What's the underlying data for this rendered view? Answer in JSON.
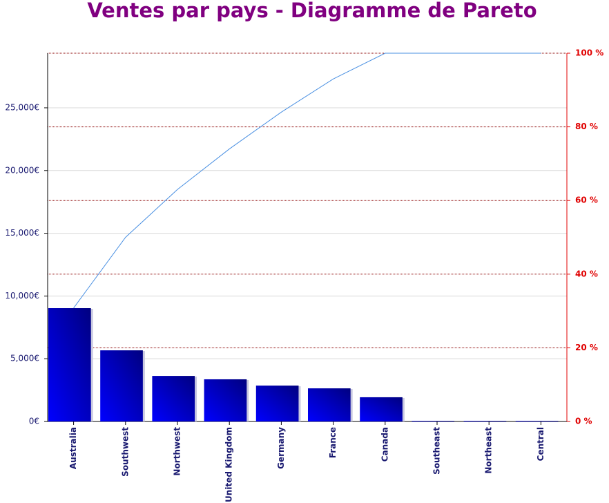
{
  "chart_data": {
    "type": "pareto",
    "title": "Ventes par pays - Diagramme de Pareto",
    "categories": [
      "Australia",
      "Southwest",
      "Northwest",
      "United Kingdom",
      "Germany",
      "France",
      "Canada",
      "Southeast",
      "Northeast",
      "Central"
    ],
    "series": [
      {
        "type": "bar",
        "color": "#0000ee",
        "values": [
          9030,
          5670,
          3630,
          3360,
          2860,
          2640,
          1930,
          50,
          50,
          50
        ]
      },
      {
        "type": "line",
        "axis": "y2",
        "color": "#4a90e2",
        "values": [
          30.8,
          50,
          63,
          74,
          84,
          93,
          100,
          100,
          100,
          100
        ]
      }
    ],
    "ylim": [
      0,
      29350
    ],
    "yticks": [
      {
        "value": 0,
        "label": "0€"
      },
      {
        "value": 5000,
        "label": "5,000€"
      },
      {
        "value": 10000,
        "label": "10,000€"
      },
      {
        "value": 15000,
        "label": "15,000€"
      },
      {
        "value": 20000,
        "label": "20,000€"
      },
      {
        "value": 25000,
        "label": "25,000€"
      }
    ],
    "y2lim": [
      0,
      100
    ],
    "y2ticks": [
      {
        "value": 0,
        "label": "0 %"
      },
      {
        "value": 20,
        "label": "20 %"
      },
      {
        "value": 40,
        "label": "40 %"
      },
      {
        "value": 60,
        "label": "60 %"
      },
      {
        "value": 80,
        "label": "80 %"
      },
      {
        "value": 100,
        "label": "100 %"
      }
    ],
    "grid": true
  }
}
